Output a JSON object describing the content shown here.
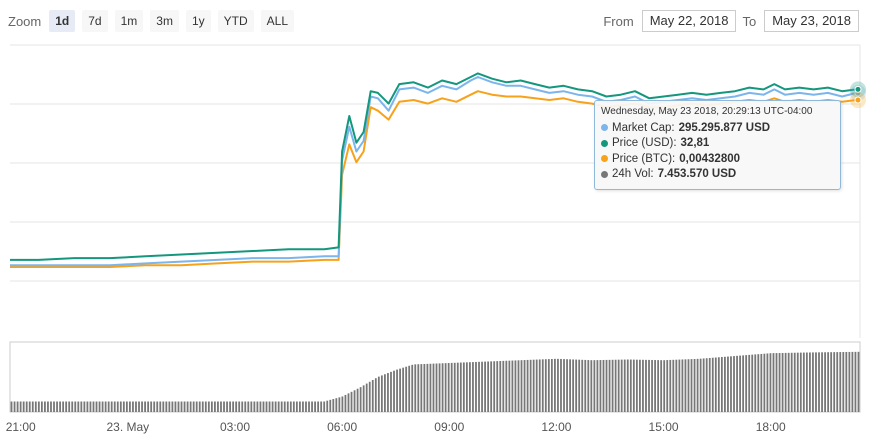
{
  "zoom": {
    "label": "Zoom",
    "buttons": [
      "1d",
      "7d",
      "1m",
      "3m",
      "1y",
      "YTD",
      "ALL"
    ],
    "active": "1d"
  },
  "range": {
    "from_label": "From",
    "from_value": "May 22, 2018",
    "to_label": "To",
    "to_value": "May 23, 2018"
  },
  "tooltip": {
    "title": "Wednesday, May 23 2018, 20:29:13 UTC-04:00",
    "rows": [
      {
        "label": "Market Cap:",
        "value": "295.295.877 USD",
        "color": "#7cb5ec"
      },
      {
        "label": "Price (USD):",
        "value": "32,81",
        "color": "#14977d"
      },
      {
        "label": "Price (BTC):",
        "value": "0,00432800",
        "color": "#f7a21b"
      },
      {
        "label": "24h Vol:",
        "value": "7.453.570 USD",
        "color": "#777777"
      }
    ]
  },
  "chart_data": {
    "type": "line",
    "x_tick_labels": [
      "21:00",
      "23. May",
      "03:00",
      "06:00",
      "09:00",
      "12:00",
      "15:00",
      "18:00"
    ],
    "x_hours": [
      -3,
      0,
      3,
      6,
      9,
      12,
      15,
      18
    ],
    "x_range_hours": [
      -3.3,
      20.5
    ],
    "grid": true,
    "colors": {
      "market_cap": "#7cb5ec",
      "price_usd": "#14977d",
      "price_btc": "#f7a21b",
      "volume": "#777777"
    },
    "series": [
      {
        "name": "Price (USD)",
        "key": "price_usd",
        "x": [
          -3.3,
          -2.5,
          -1.5,
          -0.5,
          0.5,
          1.5,
          2.5,
          3.5,
          4.5,
          5.5,
          5.9,
          6.0,
          6.2,
          6.4,
          6.6,
          6.8,
          7.0,
          7.3,
          7.6,
          8.0,
          8.4,
          8.8,
          9.2,
          9.6,
          9.8,
          10.2,
          10.6,
          11.0,
          11.4,
          11.8,
          12.2,
          12.6,
          13.0,
          13.4,
          13.8,
          14.2,
          14.6,
          15.0,
          15.4,
          15.8,
          16.2,
          16.6,
          17.0,
          17.4,
          17.8,
          18.1,
          18.4,
          18.8,
          19.2,
          19.6,
          20.0,
          20.4
        ],
        "y": [
          22.4,
          22.4,
          22.5,
          22.5,
          22.6,
          22.7,
          22.8,
          22.9,
          23.0,
          23.0,
          23.1,
          28.5,
          30.5,
          29.0,
          29.6,
          31.9,
          31.8,
          31.2,
          32.3,
          32.4,
          32.1,
          32.5,
          32.3,
          32.7,
          32.9,
          32.6,
          32.4,
          32.5,
          32.3,
          32.1,
          32.2,
          32.0,
          31.9,
          31.6,
          31.7,
          31.9,
          31.5,
          31.6,
          31.7,
          31.8,
          31.7,
          31.8,
          31.9,
          32.1,
          32.0,
          32.3,
          32.0,
          32.1,
          32.0,
          32.1,
          31.9,
          32.0
        ]
      },
      {
        "name": "Market Cap",
        "key": "market_cap",
        "x": [
          -3.3,
          -2.5,
          -1.5,
          -0.5,
          0.5,
          1.5,
          2.5,
          3.5,
          4.5,
          5.5,
          5.9,
          6.0,
          6.2,
          6.4,
          6.6,
          6.8,
          7.0,
          7.3,
          7.6,
          8.0,
          8.4,
          8.8,
          9.2,
          9.6,
          9.8,
          10.2,
          10.6,
          11.0,
          11.4,
          11.8,
          12.2,
          12.6,
          13.0,
          13.4,
          13.8,
          14.2,
          14.6,
          15.0,
          15.4,
          15.8,
          16.2,
          16.6,
          17.0,
          17.4,
          17.8,
          18.1,
          18.4,
          18.8,
          19.2,
          19.6,
          20.0,
          20.4
        ],
        "y": [
          22.1,
          22.1,
          22.1,
          22.1,
          22.2,
          22.3,
          22.4,
          22.5,
          22.5,
          22.6,
          22.6,
          28.0,
          29.9,
          28.5,
          29.1,
          31.6,
          31.5,
          30.8,
          32.0,
          32.1,
          31.8,
          32.2,
          32.0,
          32.5,
          32.7,
          32.4,
          32.2,
          32.2,
          32.0,
          31.8,
          31.9,
          31.7,
          31.6,
          31.3,
          31.4,
          31.6,
          31.2,
          31.3,
          31.4,
          31.5,
          31.4,
          31.5,
          31.6,
          31.8,
          31.7,
          32.0,
          31.7,
          31.8,
          31.7,
          31.8,
          31.6,
          31.8
        ]
      },
      {
        "name": "Price (BTC)",
        "key": "price_btc",
        "x": [
          -3.3,
          -2.5,
          -1.5,
          -0.5,
          0.5,
          1.5,
          2.5,
          3.5,
          4.5,
          5.5,
          5.9,
          6.0,
          6.2,
          6.4,
          6.6,
          6.8,
          7.0,
          7.3,
          7.6,
          8.0,
          8.4,
          8.8,
          9.2,
          9.6,
          9.8,
          10.2,
          10.6,
          11.0,
          11.4,
          11.8,
          12.2,
          12.6,
          13.0,
          13.4,
          13.8,
          14.2,
          14.6,
          15.0,
          15.4,
          15.8,
          16.2,
          16.6,
          17.0,
          17.4,
          17.8,
          18.1,
          18.4,
          18.8,
          19.2,
          19.6,
          20.0,
          20.4
        ],
        "y": [
          22.0,
          22.0,
          22.0,
          22.0,
          22.1,
          22.1,
          22.2,
          22.3,
          22.3,
          22.4,
          22.4,
          27.2,
          28.9,
          27.9,
          28.5,
          31.0,
          30.8,
          30.3,
          31.3,
          31.4,
          31.2,
          31.5,
          31.3,
          31.7,
          31.9,
          31.7,
          31.6,
          31.6,
          31.5,
          31.4,
          31.5,
          31.3,
          31.2,
          31.0,
          31.1,
          31.2,
          31.0,
          31.0,
          31.1,
          31.2,
          31.1,
          31.2,
          31.3,
          31.4,
          31.3,
          31.5,
          31.3,
          31.4,
          31.3,
          31.4,
          31.3,
          31.4
        ]
      },
      {
        "name": "24h Vol",
        "key": "volume",
        "x": [
          -3.3,
          0,
          3,
          5.5,
          6.0,
          6.5,
          7.0,
          7.5,
          8.0,
          9.0,
          10.0,
          11.0,
          12.0,
          13.0,
          14.0,
          15.0,
          16.0,
          17.0,
          18.0,
          19.0,
          20.5
        ],
        "y": [
          0.15,
          0.15,
          0.15,
          0.15,
          0.22,
          0.35,
          0.5,
          0.6,
          0.68,
          0.7,
          0.72,
          0.74,
          0.76,
          0.74,
          0.75,
          0.74,
          0.76,
          0.8,
          0.84,
          0.85,
          0.86
        ]
      }
    ]
  }
}
